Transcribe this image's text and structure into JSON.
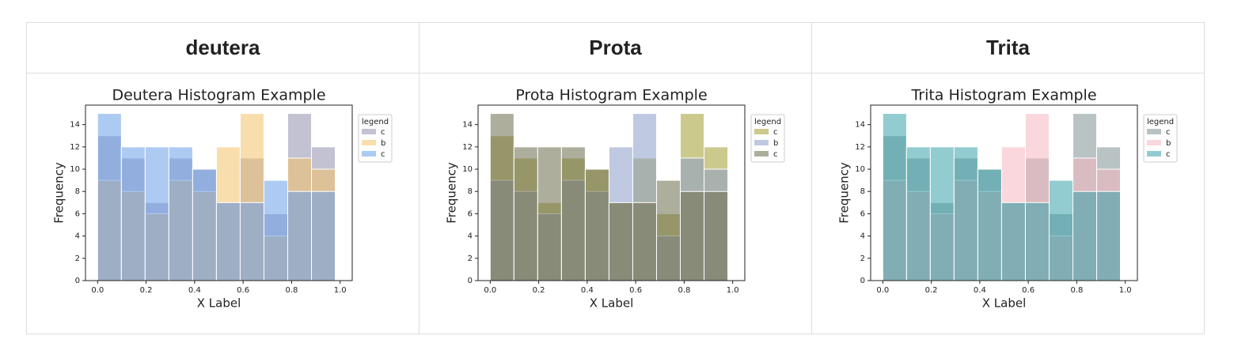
{
  "table": {
    "headers": [
      "deutera",
      "Prota",
      "Trita"
    ]
  },
  "chart_data": [
    {
      "type": "histogram",
      "title": "Deutera Histogram Example",
      "xlabel": "X Label",
      "ylabel": "Frequency",
      "legend_title": "legend",
      "legend": "upper right outside",
      "bins": [
        0,
        0.098,
        0.196,
        0.294,
        0.392,
        0.49,
        0.588,
        0.686,
        0.784,
        0.882,
        0.98
      ],
      "series": [
        {
          "name": "c",
          "color": "#8f8fae",
          "values": [
            13,
            11,
            7,
            11,
            10,
            7,
            11,
            6,
            15,
            12
          ]
        },
        {
          "name": "b",
          "color": "#f4c26a",
          "values": [
            9,
            8,
            6,
            9,
            8,
            12,
            15,
            4,
            11,
            10
          ]
        },
        {
          "name": "c",
          "color": "#6a9fe8",
          "values": [
            15,
            12,
            12,
            12,
            10,
            7,
            7,
            9,
            8,
            8
          ]
        }
      ],
      "xlim": [
        -0.05,
        1.05
      ],
      "ylim": [
        0,
        15.75
      ],
      "xticks": [
        {
          "value": 0,
          "label": "0.0"
        },
        0.2,
        0.4,
        0.6,
        0.8,
        {
          "value": 1,
          "label": "1.0"
        }
      ],
      "yticks": [
        0,
        2,
        4,
        6,
        8,
        10,
        12,
        14
      ],
      "grid": false
    },
    {
      "type": "histogram",
      "title": "Prota Histogram Example",
      "xlabel": "X Label",
      "ylabel": "Frequency",
      "legend_title": "legend",
      "legend": "upper right outside",
      "bins": [
        0,
        0.098,
        0.196,
        0.294,
        0.392,
        0.49,
        0.588,
        0.686,
        0.784,
        0.882,
        0.98
      ],
      "series": [
        {
          "name": "c",
          "color": "#a39c30",
          "values": [
            13,
            11,
            7,
            11,
            10,
            7,
            11,
            6,
            15,
            12
          ]
        },
        {
          "name": "b",
          "color": "#8a9cc8",
          "values": [
            9,
            8,
            6,
            9,
            8,
            12,
            15,
            4,
            11,
            10
          ]
        },
        {
          "name": "c",
          "color": "#6b6b4c",
          "values": [
            15,
            12,
            12,
            12,
            10,
            7,
            7,
            9,
            8,
            8
          ]
        }
      ],
      "xlim": [
        -0.05,
        1.05
      ],
      "ylim": [
        0,
        15.75
      ],
      "xticks": [
        {
          "value": 0,
          "label": "0.0"
        },
        0.2,
        0.4,
        0.6,
        0.8,
        {
          "value": 1,
          "label": "1.0"
        }
      ],
      "yticks": [
        0,
        2,
        4,
        6,
        8,
        10,
        12,
        14
      ],
      "grid": false
    },
    {
      "type": "histogram",
      "title": "Trita Histogram Example",
      "xlabel": "X Label",
      "ylabel": "Frequency",
      "legend_title": "legend",
      "legend": "upper right outside",
      "bins": [
        0,
        0.098,
        0.196,
        0.294,
        0.392,
        0.49,
        0.588,
        0.686,
        0.784,
        0.882,
        0.98
      ],
      "series": [
        {
          "name": "c",
          "color": "#7f9292",
          "values": [
            13,
            11,
            7,
            11,
            10,
            7,
            11,
            6,
            15,
            12
          ]
        },
        {
          "name": "b",
          "color": "#f4b6c0",
          "values": [
            9,
            8,
            6,
            9,
            8,
            12,
            15,
            4,
            11,
            10
          ]
        },
        {
          "name": "c",
          "color": "#38a0aa",
          "values": [
            15,
            12,
            12,
            12,
            10,
            7,
            7,
            9,
            8,
            8
          ]
        }
      ],
      "xlim": [
        -0.05,
        1.05
      ],
      "ylim": [
        0,
        15.75
      ],
      "xticks": [
        {
          "value": 0,
          "label": "0.0"
        },
        0.2,
        0.4,
        0.6,
        0.8,
        {
          "value": 1,
          "label": "1.0"
        }
      ],
      "yticks": [
        0,
        2,
        4,
        6,
        8,
        10,
        12,
        14
      ],
      "grid": false
    }
  ]
}
